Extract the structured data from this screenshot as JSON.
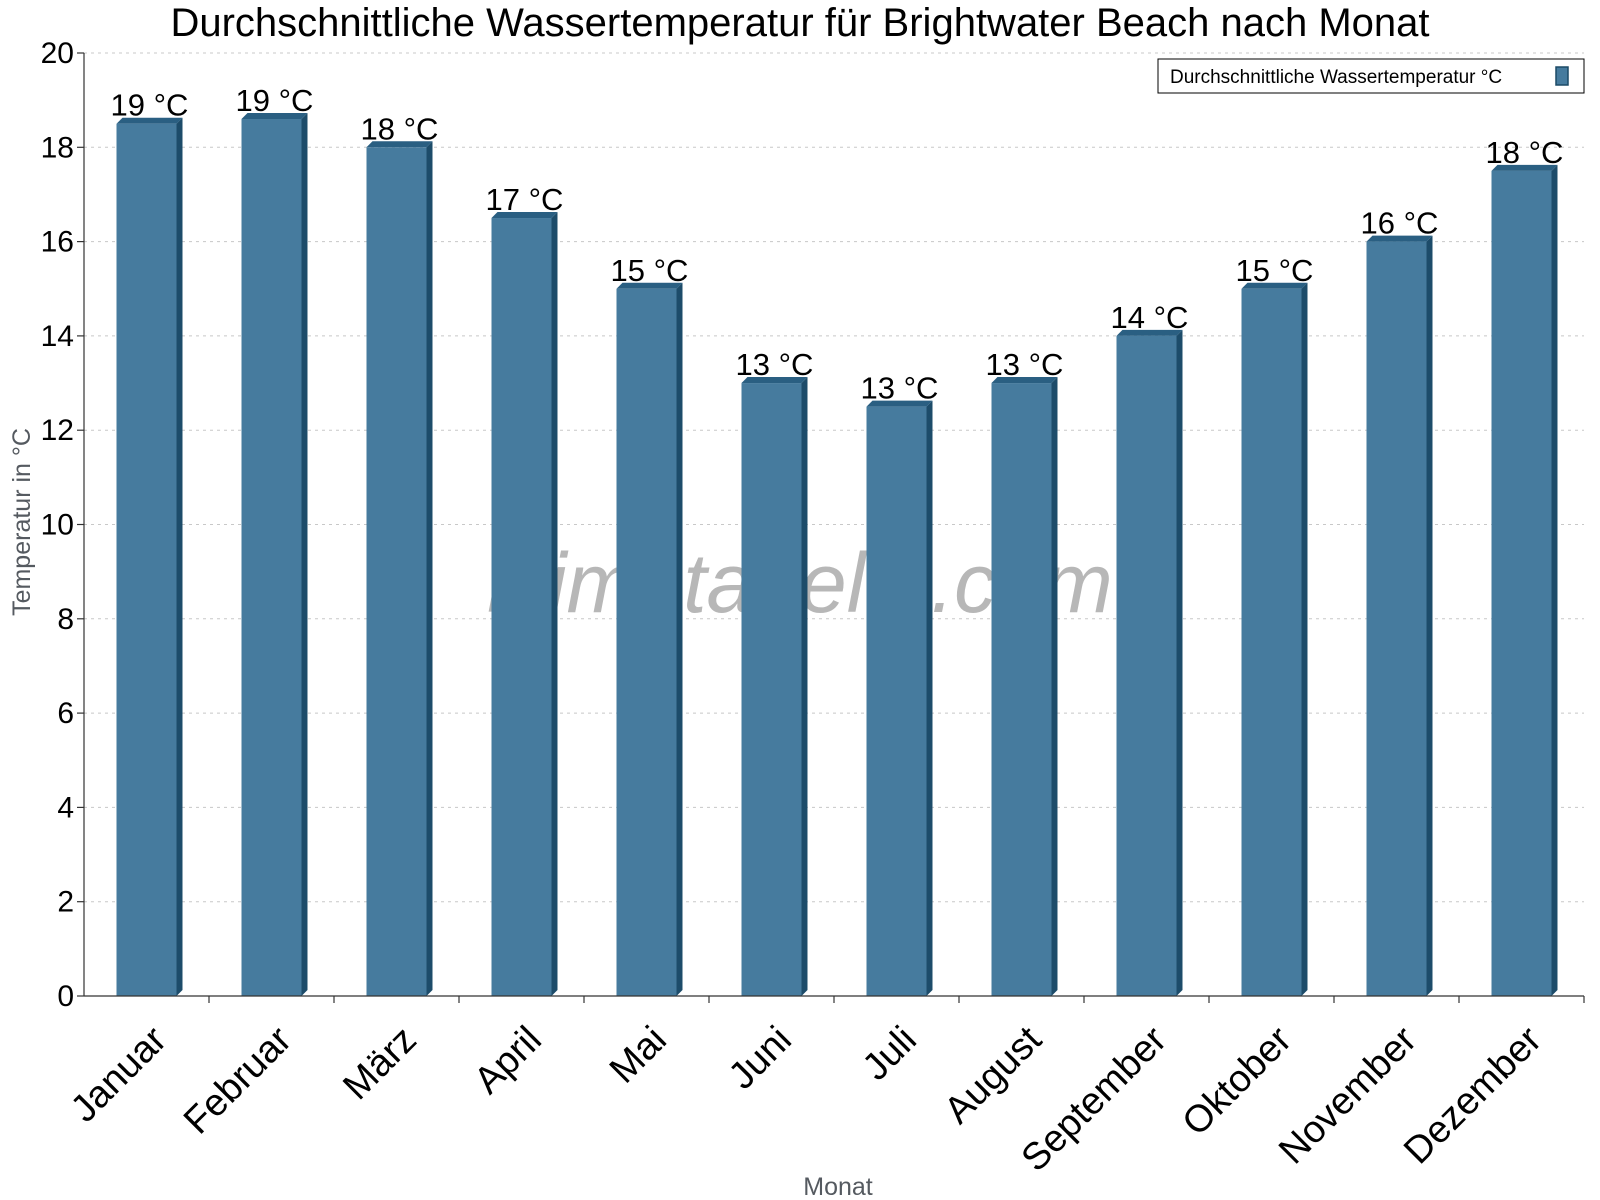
{
  "chart_data": {
    "type": "bar",
    "title": "Durchschnittliche Wassertemperatur für Brightwater Beach nach Monat",
    "xlabel": "Monat",
    "ylabel": "Temperatur in °C",
    "ylim": [
      0,
      20
    ],
    "yticks": [
      "0",
      "2",
      "4",
      "6",
      "8",
      "10",
      "12",
      "14",
      "16",
      "18",
      "20"
    ],
    "categories": [
      "Januar",
      "Februar",
      "März",
      "April",
      "Mai",
      "Juni",
      "Juli",
      "August",
      "September",
      "Oktober",
      "November",
      "Dezember"
    ],
    "series": [
      {
        "name": "Durchschnittliche Wassertemperatur °C",
        "values": [
          18.5,
          18.6,
          18.0,
          16.5,
          15.0,
          13.0,
          12.5,
          13.0,
          14.0,
          15.0,
          16.0,
          17.5
        ],
        "labels": [
          "19 °C",
          "19 °C",
          "18 °C",
          "17 °C",
          "15 °C",
          "13 °C",
          "13 °C",
          "13 °C",
          "14 °C",
          "15 °C",
          "16 °C",
          "18 °C"
        ],
        "color": "#467b9e"
      }
    ],
    "grid": true,
    "legend": "top-right",
    "watermark": "klimatabelle.com"
  }
}
